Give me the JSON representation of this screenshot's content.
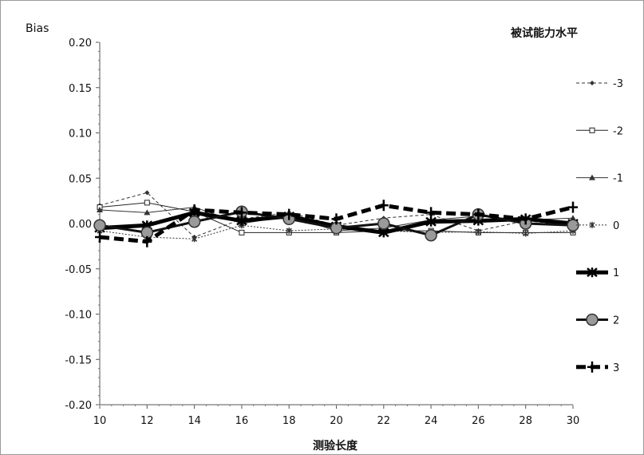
{
  "chart_data": {
    "type": "line",
    "title": "",
    "xlabel": "测验长度",
    "ylabel": "Bias",
    "legend_title": "被试能力水平",
    "legend_position": "right",
    "grid": false,
    "x": [
      10,
      12,
      14,
      16,
      18,
      20,
      22,
      24,
      26,
      28,
      30
    ],
    "xlim": [
      10,
      30
    ],
    "ylim": [
      -0.2,
      0.2
    ],
    "x_ticks": [
      "10",
      "12",
      "14",
      "16",
      "18",
      "20",
      "22",
      "24",
      "26",
      "28",
      "30"
    ],
    "y_ticks": [
      "0.20",
      "0.15",
      "0.10",
      "0.05",
      "0.00",
      "-0.05",
      "-0.10",
      "-0.15",
      "-0.20"
    ],
    "y_tick_values": [
      0.2,
      0.15,
      0.1,
      0.05,
      0.0,
      -0.05,
      -0.1,
      -0.15,
      -0.2
    ],
    "series": [
      {
        "name": "-3",
        "values": [
          0.02,
          0.034,
          -0.015,
          0.005,
          0.012,
          -0.002,
          0.006,
          0.01,
          -0.008,
          0.003,
          -0.002
        ],
        "color": "#333333",
        "dash": "4,3",
        "width": 1,
        "marker": "diamond"
      },
      {
        "name": "-2",
        "values": [
          0.018,
          0.023,
          0.013,
          -0.01,
          -0.01,
          -0.01,
          -0.008,
          -0.008,
          -0.01,
          -0.01,
          -0.01
        ],
        "color": "#222222",
        "dash": "",
        "width": 1,
        "marker": "square"
      },
      {
        "name": "-1",
        "values": [
          0.015,
          0.012,
          0.018,
          0.0,
          0.008,
          -0.008,
          -0.005,
          0.004,
          0.008,
          0.004,
          0.006
        ],
        "color": "#333333",
        "dash": "",
        "width": 1,
        "marker": "triangle"
      },
      {
        "name": "0",
        "values": [
          -0.008,
          -0.015,
          -0.017,
          -0.002,
          -0.008,
          -0.006,
          -0.008,
          -0.01,
          -0.009,
          -0.011,
          -0.008
        ],
        "color": "#333333",
        "dash": "2,2",
        "width": 1,
        "marker": "star"
      },
      {
        "name": "1",
        "values": [
          -0.005,
          -0.002,
          0.012,
          0.003,
          0.008,
          -0.003,
          -0.01,
          0.002,
          0.003,
          0.005,
          0.0
        ],
        "color": "#000000",
        "dash": "",
        "width": 5,
        "marker": "cross"
      },
      {
        "name": "2",
        "values": [
          -0.002,
          -0.01,
          0.002,
          0.013,
          0.005,
          -0.005,
          0.0,
          -0.013,
          0.01,
          0.0,
          -0.002
        ],
        "color": "#111111",
        "dash": "",
        "width": 3,
        "marker": "circle"
      },
      {
        "name": "3",
        "values": [
          -0.015,
          -0.02,
          0.015,
          0.012,
          0.01,
          0.005,
          0.02,
          0.012,
          0.01,
          0.005,
          0.018
        ],
        "color": "#000000",
        "dash": "12,6",
        "width": 5,
        "marker": "plus"
      }
    ]
  }
}
